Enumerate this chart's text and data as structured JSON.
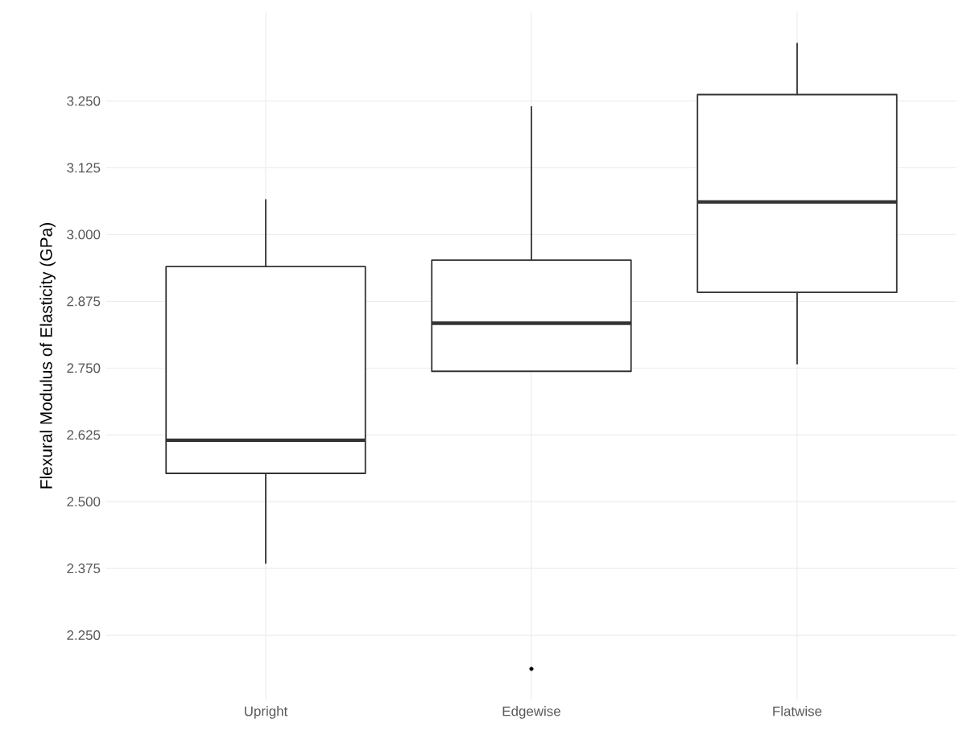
{
  "chart_data": {
    "type": "box",
    "ylabel": "Flexural Modulus of Elasticity (GPa)",
    "categories": [
      "Upright",
      "Edgewise",
      "Flatwise"
    ],
    "boxes": [
      {
        "low": 2.384,
        "q1": 2.553,
        "median": 2.615,
        "q3": 2.94,
        "high": 3.066
      },
      {
        "low": 2.744,
        "q1": 2.744,
        "median": 2.834,
        "q3": 2.952,
        "high": 3.24,
        "outliers": [
          2.187
        ]
      },
      {
        "low": 2.757,
        "q1": 2.892,
        "median": 3.061,
        "q3": 3.262,
        "high": 3.359
      }
    ],
    "ylim": [
      2.128,
      3.418
    ],
    "yticks": [
      {
        "value": 2.25,
        "label": "2.250"
      },
      {
        "value": 2.375,
        "label": "2.375"
      },
      {
        "value": 2.5,
        "label": "2.500"
      },
      {
        "value": 2.625,
        "label": "2.625"
      },
      {
        "value": 2.75,
        "label": "2.750"
      },
      {
        "value": 2.875,
        "label": "2.875"
      },
      {
        "value": 3.0,
        "label": "3.000"
      },
      {
        "value": 3.125,
        "label": "3.125"
      },
      {
        "value": 3.25,
        "label": "3.250"
      }
    ],
    "grid": true
  }
}
